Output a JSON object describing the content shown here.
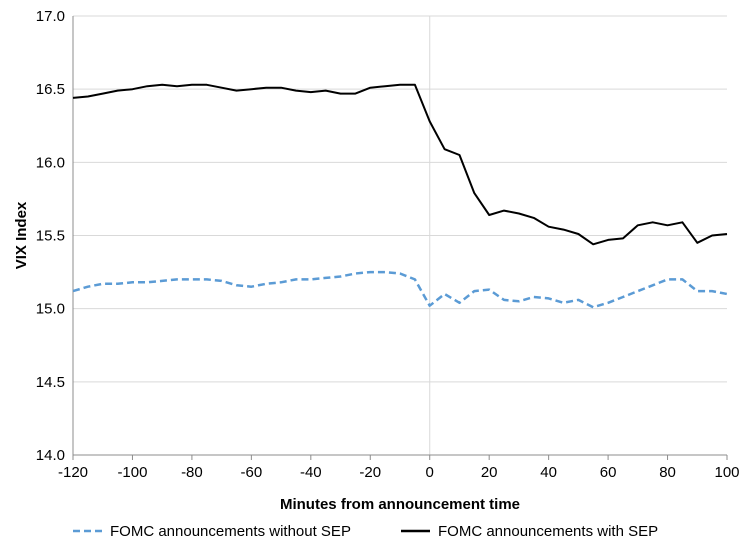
{
  "chart_data": {
    "type": "line",
    "title": "",
    "xlabel": "Minutes from announcement time",
    "ylabel": "VIX Index",
    "xlim": [
      -120,
      100
    ],
    "ylim": [
      14.0,
      17.0
    ],
    "x_ticks": [
      -120,
      -100,
      -80,
      -60,
      -40,
      -20,
      0,
      20,
      40,
      60,
      80,
      100
    ],
    "y_ticks": [
      14.0,
      14.5,
      15.0,
      15.5,
      16.0,
      16.5,
      17.0
    ],
    "y_tick_labels": [
      "14.0",
      "14.5",
      "15.0",
      "15.5",
      "16.0",
      "16.5",
      "17.0"
    ],
    "grid": "horizontal",
    "vertical_reference_line": 0,
    "legend_position": "bottom",
    "series": [
      {
        "name": "FOMC announcements without SEP",
        "color": "#5b9bd5",
        "style": "dashed",
        "x": [
          -120,
          -115,
          -110,
          -105,
          -100,
          -95,
          -90,
          -85,
          -80,
          -75,
          -70,
          -65,
          -60,
          -55,
          -50,
          -45,
          -40,
          -35,
          -30,
          -25,
          -20,
          -15,
          -10,
          -5,
          0,
          5,
          10,
          15,
          20,
          25,
          30,
          35,
          40,
          45,
          50,
          55,
          60,
          65,
          70,
          75,
          80,
          85,
          90,
          95,
          100
        ],
        "values": [
          15.12,
          15.15,
          15.17,
          15.17,
          15.18,
          15.18,
          15.19,
          15.2,
          15.2,
          15.2,
          15.19,
          15.16,
          15.15,
          15.17,
          15.18,
          15.2,
          15.2,
          15.21,
          15.22,
          15.24,
          15.25,
          15.25,
          15.24,
          15.2,
          15.02,
          15.1,
          15.04,
          15.12,
          15.13,
          15.06,
          15.05,
          15.08,
          15.07,
          15.04,
          15.06,
          15.01,
          15.04,
          15.08,
          15.12,
          15.16,
          15.2,
          15.2,
          15.12,
          15.12,
          15.1
        ]
      },
      {
        "name": "FOMC announcements with SEP",
        "color": "#000000",
        "style": "solid",
        "x": [
          -120,
          -115,
          -110,
          -105,
          -100,
          -95,
          -90,
          -85,
          -80,
          -75,
          -70,
          -65,
          -60,
          -55,
          -50,
          -45,
          -40,
          -35,
          -30,
          -25,
          -20,
          -15,
          -10,
          -5,
          0,
          5,
          10,
          15,
          20,
          25,
          30,
          35,
          40,
          45,
          50,
          55,
          60,
          65,
          70,
          75,
          80,
          85,
          90,
          95,
          100
        ],
        "values": [
          16.44,
          16.45,
          16.47,
          16.49,
          16.5,
          16.52,
          16.53,
          16.52,
          16.53,
          16.53,
          16.51,
          16.49,
          16.5,
          16.51,
          16.51,
          16.49,
          16.48,
          16.49,
          16.47,
          16.47,
          16.51,
          16.52,
          16.53,
          16.53,
          16.28,
          16.09,
          16.05,
          15.79,
          15.64,
          15.67,
          15.65,
          15.62,
          15.56,
          15.54,
          15.51,
          15.44,
          15.47,
          15.48,
          15.57,
          15.59,
          15.57,
          15.59,
          15.45,
          15.5,
          15.51
        ]
      }
    ]
  }
}
